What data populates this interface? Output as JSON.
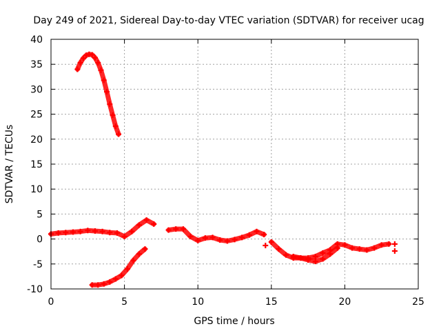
{
  "chart_data": {
    "type": "scatter",
    "title": "Day 249 of 2021, Sidereal Day-to-day VTEC variation (SDTVAR) for receiver ucag",
    "xlabel": "GPS time / hours",
    "ylabel": "SDTVAR / TECUs",
    "xlim": [
      0,
      25
    ],
    "ylim": [
      -10,
      40
    ],
    "xticks": [
      0,
      5,
      10,
      15,
      20,
      25
    ],
    "yticks": [
      -10,
      -5,
      0,
      5,
      10,
      15,
      20,
      25,
      30,
      35,
      40
    ],
    "grid": true,
    "marker": "+",
    "color": "#ff0000",
    "series": [
      {
        "name": "arc-high",
        "x": [
          1.8,
          2.0,
          2.2,
          2.4,
          2.6,
          2.8,
          3.0,
          3.2,
          3.4,
          3.6,
          3.8,
          4.0,
          4.2,
          4.4,
          4.6
        ],
        "y": [
          34.0,
          35.3,
          36.2,
          36.8,
          37.0,
          36.9,
          36.3,
          35.3,
          33.8,
          31.8,
          29.5,
          27.0,
          24.8,
          22.6,
          21.0
        ]
      },
      {
        "name": "arc-low",
        "x": [
          2.8,
          3.2,
          3.6,
          4.0,
          4.4,
          4.8,
          5.2,
          5.6,
          6.0,
          6.4
        ],
        "y": [
          -9.2,
          -9.2,
          -9.0,
          -8.6,
          -8.0,
          -7.3,
          -6.0,
          -4.3,
          -3.0,
          -2.0
        ]
      },
      {
        "name": "arc-near-zero-1",
        "x": [
          0.0,
          0.5,
          1.0,
          1.5,
          2.0,
          2.5,
          3.0,
          3.5,
          4.0,
          4.5,
          5.0,
          5.5,
          6.0,
          6.5,
          7.0
        ],
        "y": [
          1.0,
          1.2,
          1.3,
          1.4,
          1.5,
          1.7,
          1.6,
          1.5,
          1.3,
          1.2,
          0.5,
          1.5,
          2.8,
          3.8,
          3.0
        ]
      },
      {
        "name": "arc-near-zero-2",
        "x": [
          8.0,
          8.5,
          9.0,
          9.5,
          10.0,
          10.5,
          11.0,
          11.5,
          12.0,
          12.5,
          13.0,
          13.5,
          14.0,
          14.5
        ],
        "y": [
          1.8,
          2.0,
          2.0,
          0.5,
          -0.3,
          0.2,
          0.3,
          -0.2,
          -0.4,
          -0.1,
          0.3,
          0.8,
          1.5,
          0.9
        ]
      },
      {
        "name": "arc-near-zero-3",
        "x": [
          15.0,
          15.5,
          16.0,
          16.5,
          17.0,
          17.5,
          18.0,
          18.5,
          19.0,
          19.5,
          20.0,
          20.5,
          21.0,
          21.5,
          22.0,
          22.5,
          23.0
        ],
        "y": [
          -0.6,
          -2.0,
          -3.2,
          -3.8,
          -3.8,
          -3.8,
          -3.5,
          -2.8,
          -2.2,
          -1.0,
          -1.2,
          -1.8,
          -2.0,
          -2.2,
          -1.8,
          -1.2,
          -1.0
        ]
      },
      {
        "name": "arc-lower-band",
        "x": [
          16.5,
          17.0,
          17.5,
          18.0,
          18.5,
          19.0,
          19.5
        ],
        "y": [
          -3.5,
          -3.8,
          -4.2,
          -4.5,
          -4.0,
          -3.0,
          -1.8
        ]
      },
      {
        "name": "isolated",
        "x": [
          14.6,
          23.4,
          23.4
        ],
        "y": [
          -1.3,
          -1.0,
          -2.4
        ]
      }
    ]
  }
}
